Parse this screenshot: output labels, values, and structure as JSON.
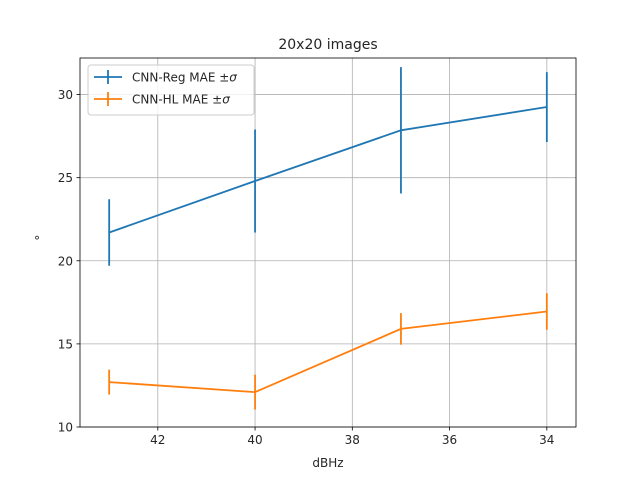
{
  "chart_data": {
    "type": "line",
    "title": "20x20 images",
    "xlabel": "dBHz",
    "ylabel": "°",
    "x": [
      43,
      40,
      37,
      34
    ],
    "xlim": [
      43.6,
      33.4
    ],
    "ylim": [
      10,
      32.2
    ],
    "xticks": [
      42,
      40,
      38,
      36,
      34
    ],
    "xtick_labels": [
      "42",
      "40",
      "38",
      "36",
      "34"
    ],
    "yticks": [
      10,
      15,
      20,
      25,
      30
    ],
    "ytick_labels": [
      "10",
      "15",
      "20",
      "25",
      "30"
    ],
    "grid": true,
    "legend_position": "top-left",
    "series": [
      {
        "name": "CNN-Reg MAE ±",
        "name_sigma": "σ",
        "color": "#1f77b4",
        "values": [
          21.7,
          24.8,
          27.85,
          29.25
        ],
        "errors": [
          2.0,
          3.1,
          3.8,
          2.1
        ]
      },
      {
        "name": "CNN-HL MAE ±",
        "name_sigma": "σ",
        "color": "#ff7f0e",
        "values": [
          12.7,
          12.1,
          15.9,
          16.95
        ],
        "errors": [
          0.75,
          1.05,
          0.95,
          1.1
        ]
      }
    ]
  }
}
